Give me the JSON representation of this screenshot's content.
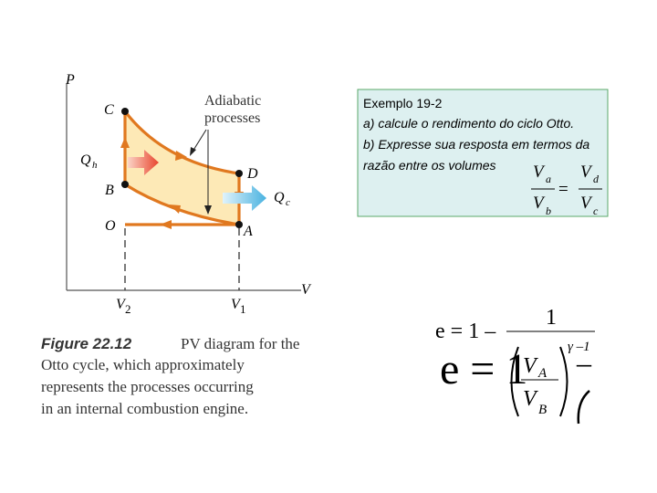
{
  "diagram": {
    "axis_y": "P",
    "axis_x": "V",
    "point_labels": [
      "C",
      "B",
      "O",
      "D",
      "A"
    ],
    "heat_in": {
      "symbol": "Q",
      "sub": "h"
    },
    "heat_out": {
      "symbol": "Q",
      "sub": "c"
    },
    "annotation": [
      "Adiabatic",
      "processes"
    ],
    "volume_ticks": [
      {
        "symbol": "V",
        "sub": "2"
      },
      {
        "symbol": "V",
        "sub": "1"
      }
    ]
  },
  "caption": {
    "label": "Figure 22.12",
    "lines": [
      "PV diagram for the",
      "Otto cycle, which approximately",
      "represents the processes occurring",
      "in an internal combustion engine."
    ]
  },
  "example_box": {
    "lines": [
      "Exemplo 19-2",
      "a) calcule o rendimento do ciclo Otto.",
      "b) Expresse sua resposta em termos da",
      "razão entre os volumes"
    ],
    "ratio": {
      "left": {
        "num": {
          "symbol": "V",
          "sub": "a"
        },
        "den": {
          "symbol": "V",
          "sub": "b"
        }
      },
      "equals": "=",
      "right": {
        "num": {
          "symbol": "V",
          "sub": "d"
        },
        "den": {
          "symbol": "V",
          "sub": "c"
        }
      }
    }
  },
  "formula_small": {
    "lhs": "e = 1 –",
    "num": "1",
    "exp": "γ –1"
  },
  "formula_large": {
    "lhs": "e = 1",
    "num": {
      "symbol": "V",
      "sub": "A"
    },
    "den": {
      "symbol": "V",
      "sub": "B"
    },
    "minus": "–"
  }
}
